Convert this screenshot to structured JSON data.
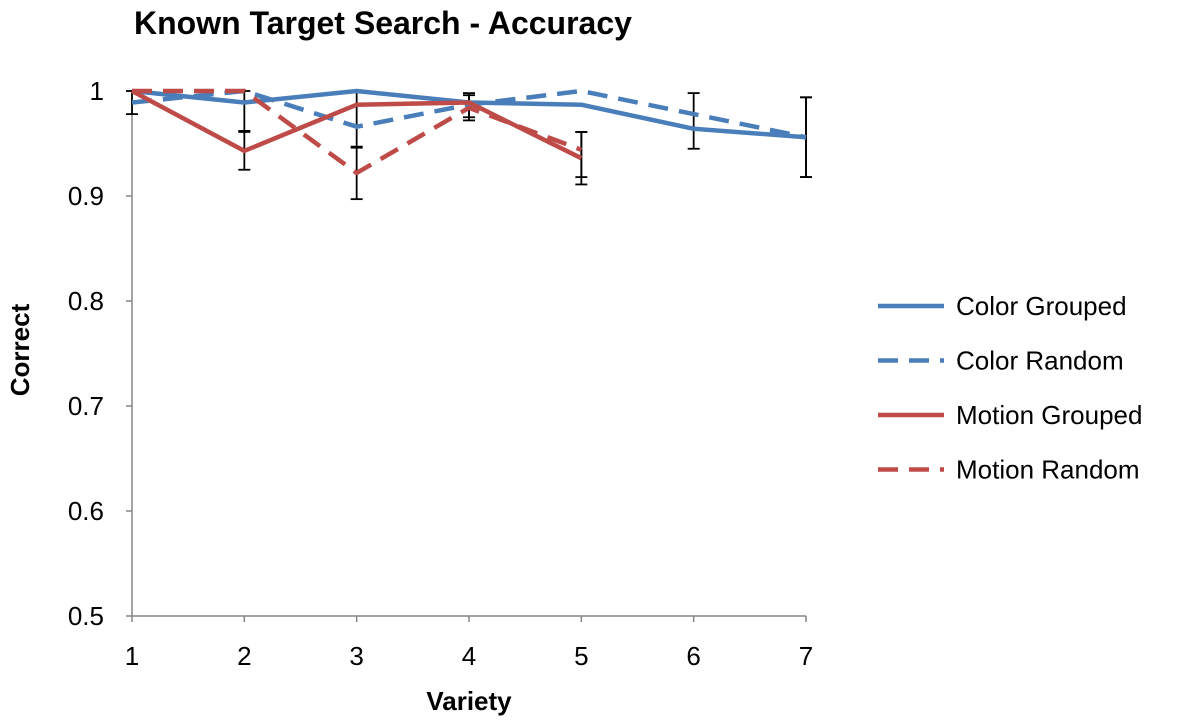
{
  "chart_data": {
    "type": "line",
    "title": "Known Target Search - Accuracy",
    "xlabel": "Variety",
    "ylabel": "Correct",
    "x": [
      1,
      2,
      3,
      4,
      5,
      6,
      7
    ],
    "x_tick_labels": [
      "1",
      "2",
      "3",
      "4",
      "5",
      "6",
      "7"
    ],
    "ylim": [
      0.5,
      1.0
    ],
    "y_ticks": [
      0.5,
      0.6,
      0.7,
      0.8,
      0.9,
      1.0
    ],
    "y_tick_labels": [
      "0.5",
      "0.6",
      "0.7",
      "0.8",
      "0.9",
      "1"
    ],
    "grid": false,
    "legend_position": "right",
    "series": [
      {
        "name": "Color Grouped",
        "color": "#4a7ebb",
        "dash": "solid",
        "values": [
          1.0,
          0.989,
          1.0,
          0.989,
          0.987,
          0.964,
          0.956
        ],
        "error": [
          0.0,
          0.0,
          0.0,
          0.0,
          0.0,
          0.0,
          0.0
        ]
      },
      {
        "name": "Color Random",
        "color": "#4a7ebb",
        "dash": "dashed",
        "values": [
          0.989,
          1.0,
          0.966,
          0.987,
          1.0,
          0.978,
          0.956
        ],
        "error": [
          0.011,
          0.0,
          0.0,
          0.0,
          0.0,
          0.0,
          0.038
        ]
      },
      {
        "name": "Motion Grouped",
        "color": "#be4b48",
        "dash": "solid",
        "values": [
          1.0,
          0.943,
          0.987,
          0.989,
          0.936,
          null,
          null
        ],
        "error": [
          0.0,
          0.018,
          0.0,
          0.0,
          0.025,
          null,
          null
        ]
      },
      {
        "name": "Motion Random",
        "color": "#be4b48",
        "dash": "dashed",
        "values": [
          1.0,
          1.0,
          0.922,
          0.984,
          0.944,
          null,
          null
        ],
        "error": [
          0.0,
          0.0,
          0.025,
          0.012,
          0.0,
          null,
          null
        ]
      }
    ],
    "extra_error_bars": [
      {
        "x": 2,
        "low": 0.962,
        "high": 1.0
      },
      {
        "x": 3,
        "low": 0.946,
        "high": 1.0
      },
      {
        "x": 4,
        "low": 0.975,
        "high": 0.998
      },
      {
        "x": 5,
        "low": 0.918,
        "high": 0.961
      },
      {
        "x": 6,
        "low": 0.945,
        "high": 0.998
      },
      {
        "x": 7,
        "low": 0.918,
        "high": 0.994
      }
    ]
  }
}
